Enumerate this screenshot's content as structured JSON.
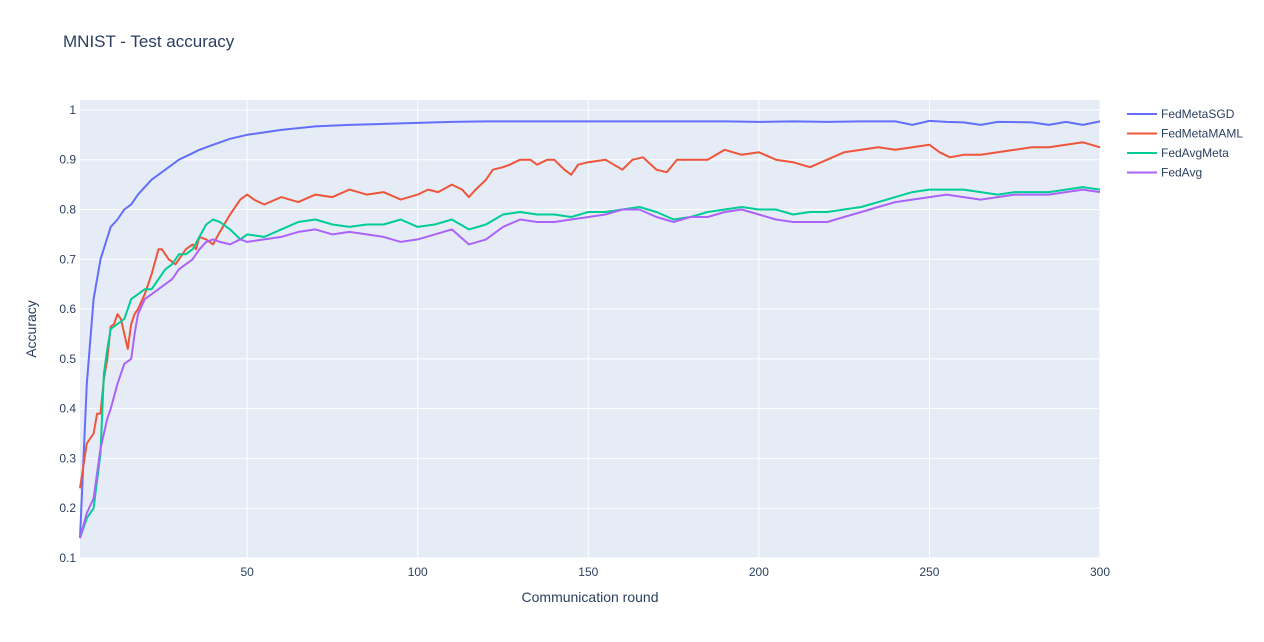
{
  "chart_data": {
    "type": "line",
    "title": "MNIST - Test accuracy",
    "xlabel": "Communication round",
    "ylabel": "Accuracy",
    "xlim": [
      1,
      300
    ],
    "ylim": [
      0.1,
      1.02
    ],
    "x_ticks": [
      50,
      100,
      150,
      200,
      250,
      300
    ],
    "y_ticks": [
      0.1,
      0.2,
      0.3,
      0.4,
      0.5,
      0.6,
      0.7,
      0.8,
      0.9,
      1
    ],
    "y_tick_labels": [
      "0.1",
      "0.2",
      "0.3",
      "0.4",
      "0.5",
      "0.6",
      "0.7",
      "0.8",
      "0.9",
      "1"
    ],
    "grid": true,
    "background": "#e5ecf6",
    "legend_position": "top-right-outside",
    "series": [
      {
        "name": "FedMetaSGD",
        "color": "#636efa",
        "x": [
          1,
          3,
          5,
          7,
          10,
          12,
          14,
          16,
          18,
          20,
          22,
          25,
          28,
          30,
          33,
          36,
          40,
          45,
          50,
          55,
          60,
          70,
          80,
          90,
          100,
          110,
          120,
          130,
          140,
          150,
          160,
          170,
          180,
          190,
          200,
          210,
          220,
          230,
          240,
          245,
          250,
          255,
          260,
          265,
          270,
          280,
          285,
          290,
          295,
          300
        ],
        "y": [
          0.14,
          0.45,
          0.62,
          0.7,
          0.765,
          0.78,
          0.8,
          0.81,
          0.83,
          0.845,
          0.86,
          0.875,
          0.89,
          0.9,
          0.91,
          0.92,
          0.93,
          0.942,
          0.95,
          0.955,
          0.96,
          0.967,
          0.97,
          0.972,
          0.974,
          0.976,
          0.977,
          0.977,
          0.977,
          0.977,
          0.977,
          0.977,
          0.977,
          0.977,
          0.976,
          0.977,
          0.976,
          0.977,
          0.977,
          0.97,
          0.978,
          0.976,
          0.975,
          0.97,
          0.976,
          0.975,
          0.97,
          0.976,
          0.97,
          0.977
        ]
      },
      {
        "name": "FedMetaMAML",
        "color": "#ef553b",
        "x": [
          1,
          3,
          5,
          6,
          7,
          8,
          9,
          10,
          11,
          12,
          13,
          14,
          15,
          16,
          17,
          18,
          20,
          22,
          24,
          25,
          27,
          29,
          30,
          32,
          34,
          35,
          36,
          38,
          40,
          42,
          45,
          48,
          50,
          52,
          55,
          60,
          65,
          70,
          75,
          80,
          85,
          90,
          95,
          100,
          103,
          106,
          110,
          113,
          115,
          117,
          120,
          122,
          125,
          127,
          130,
          133,
          135,
          138,
          140,
          143,
          145,
          147,
          150,
          155,
          160,
          163,
          166,
          170,
          173,
          176,
          180,
          185,
          190,
          195,
          200,
          205,
          210,
          215,
          220,
          225,
          230,
          235,
          240,
          245,
          250,
          253,
          256,
          260,
          265,
          270,
          275,
          280,
          285,
          290,
          295,
          300
        ],
        "y": [
          0.24,
          0.33,
          0.35,
          0.39,
          0.39,
          0.46,
          0.5,
          0.565,
          0.57,
          0.59,
          0.58,
          0.55,
          0.52,
          0.57,
          0.59,
          0.6,
          0.63,
          0.67,
          0.72,
          0.72,
          0.7,
          0.69,
          0.7,
          0.72,
          0.73,
          0.72,
          0.745,
          0.74,
          0.73,
          0.755,
          0.79,
          0.82,
          0.83,
          0.82,
          0.81,
          0.825,
          0.815,
          0.83,
          0.825,
          0.84,
          0.83,
          0.835,
          0.82,
          0.83,
          0.84,
          0.835,
          0.85,
          0.84,
          0.825,
          0.84,
          0.86,
          0.88,
          0.885,
          0.89,
          0.9,
          0.9,
          0.89,
          0.9,
          0.9,
          0.88,
          0.87,
          0.89,
          0.895,
          0.9,
          0.88,
          0.9,
          0.905,
          0.88,
          0.875,
          0.9,
          0.9,
          0.9,
          0.92,
          0.91,
          0.915,
          0.9,
          0.895,
          0.885,
          0.9,
          0.915,
          0.92,
          0.925,
          0.92,
          0.925,
          0.93,
          0.915,
          0.905,
          0.91,
          0.91,
          0.915,
          0.92,
          0.925,
          0.925,
          0.93,
          0.935,
          0.925
        ]
      },
      {
        "name": "FedAvgMeta",
        "color": "#00cc96",
        "x": [
          1,
          3,
          5,
          7,
          8,
          9,
          10,
          12,
          14,
          16,
          18,
          20,
          22,
          24,
          26,
          28,
          30,
          32,
          34,
          36,
          38,
          40,
          42,
          45,
          48,
          50,
          55,
          60,
          65,
          70,
          75,
          80,
          85,
          90,
          95,
          100,
          105,
          110,
          115,
          120,
          125,
          130,
          135,
          140,
          145,
          150,
          155,
          160,
          165,
          170,
          175,
          180,
          185,
          190,
          195,
          200,
          205,
          210,
          215,
          220,
          225,
          230,
          235,
          240,
          245,
          250,
          255,
          260,
          265,
          270,
          275,
          280,
          285,
          290,
          295,
          300
        ],
        "y": [
          0.14,
          0.18,
          0.2,
          0.31,
          0.47,
          0.52,
          0.56,
          0.57,
          0.58,
          0.62,
          0.63,
          0.64,
          0.64,
          0.66,
          0.68,
          0.69,
          0.71,
          0.71,
          0.72,
          0.745,
          0.77,
          0.78,
          0.775,
          0.76,
          0.74,
          0.75,
          0.745,
          0.76,
          0.775,
          0.78,
          0.77,
          0.765,
          0.77,
          0.77,
          0.78,
          0.765,
          0.77,
          0.78,
          0.76,
          0.77,
          0.79,
          0.795,
          0.79,
          0.79,
          0.785,
          0.795,
          0.795,
          0.8,
          0.805,
          0.795,
          0.78,
          0.785,
          0.795,
          0.8,
          0.805,
          0.8,
          0.8,
          0.79,
          0.795,
          0.795,
          0.8,
          0.805,
          0.815,
          0.825,
          0.835,
          0.84,
          0.84,
          0.84,
          0.835,
          0.83,
          0.835,
          0.835,
          0.835,
          0.84,
          0.845,
          0.84
        ]
      },
      {
        "name": "FedAvg",
        "color": "#ab63fa",
        "x": [
          1,
          3,
          5,
          7,
          8,
          9,
          10,
          12,
          14,
          16,
          17,
          18,
          20,
          22,
          24,
          26,
          28,
          30,
          32,
          34,
          36,
          38,
          40,
          42,
          45,
          48,
          50,
          55,
          60,
          65,
          70,
          75,
          80,
          85,
          90,
          95,
          100,
          105,
          110,
          115,
          120,
          125,
          130,
          135,
          140,
          145,
          150,
          155,
          160,
          165,
          170,
          175,
          180,
          185,
          190,
          195,
          200,
          205,
          210,
          215,
          220,
          225,
          230,
          235,
          240,
          245,
          250,
          255,
          260,
          265,
          270,
          275,
          280,
          285,
          290,
          295,
          300
        ],
        "y": [
          0.14,
          0.19,
          0.22,
          0.32,
          0.35,
          0.38,
          0.4,
          0.45,
          0.49,
          0.5,
          0.55,
          0.59,
          0.62,
          0.63,
          0.64,
          0.65,
          0.66,
          0.68,
          0.69,
          0.7,
          0.72,
          0.735,
          0.74,
          0.735,
          0.73,
          0.74,
          0.735,
          0.74,
          0.745,
          0.755,
          0.76,
          0.75,
          0.755,
          0.75,
          0.745,
          0.735,
          0.74,
          0.75,
          0.76,
          0.73,
          0.74,
          0.765,
          0.78,
          0.775,
          0.775,
          0.78,
          0.785,
          0.79,
          0.8,
          0.8,
          0.785,
          0.775,
          0.785,
          0.785,
          0.795,
          0.8,
          0.79,
          0.78,
          0.775,
          0.775,
          0.775,
          0.785,
          0.795,
          0.805,
          0.815,
          0.82,
          0.825,
          0.83,
          0.825,
          0.82,
          0.825,
          0.83,
          0.83,
          0.83,
          0.835,
          0.84,
          0.835
        ]
      }
    ]
  }
}
